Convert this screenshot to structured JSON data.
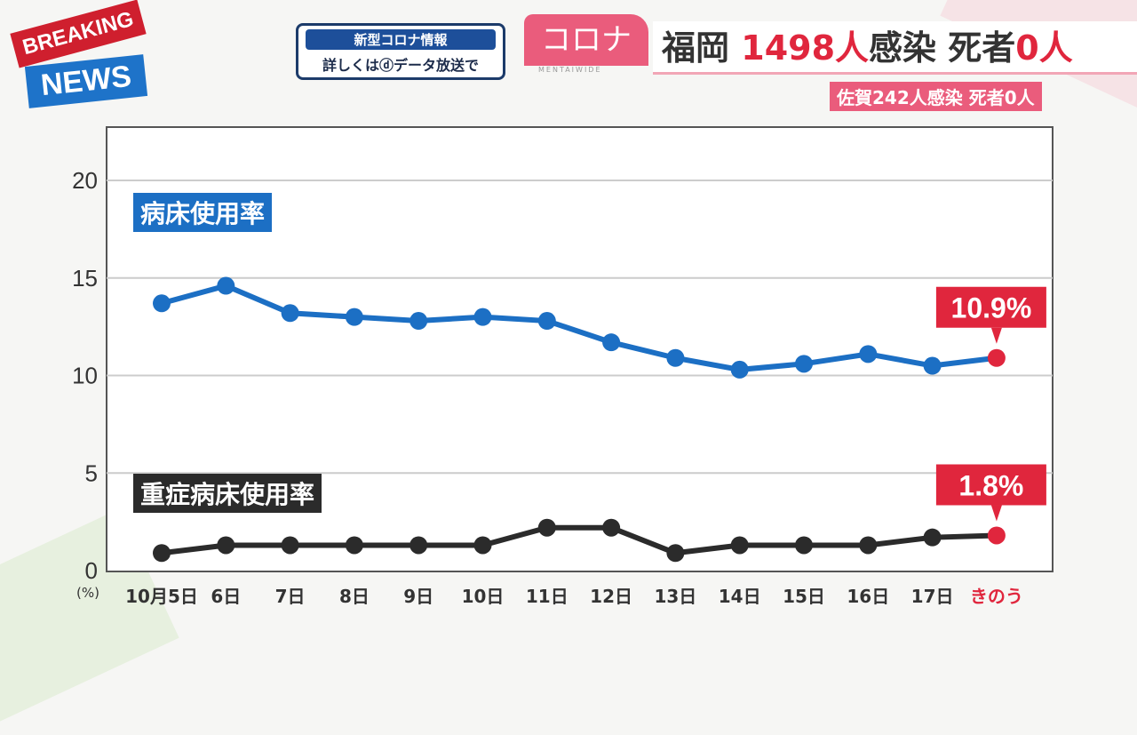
{
  "badge": {
    "breaking": "BREAKING",
    "news": "NEWS"
  },
  "info_box": {
    "line1": "新型コロナ情報",
    "line2": "詳しくはⓓデータ放送で"
  },
  "header": {
    "tag": "コロナ",
    "sub": "MENTAIWIDE",
    "place": "福岡",
    "count": "1498人",
    "infect": "感染",
    "death_label": "死者",
    "death": "0人",
    "secondary": "佐賀242人感染 死者0人"
  },
  "chart_data": {
    "type": "line",
    "categories": [
      "10月5日",
      "6日",
      "7日",
      "8日",
      "9日",
      "10日",
      "11日",
      "12日",
      "13日",
      "14日",
      "15日",
      "16日",
      "17日",
      "きのう"
    ],
    "yticks": [
      "0",
      "5",
      "10",
      "15",
      "20"
    ],
    "ylabel": "(%)",
    "ylim": [
      0,
      22.5
    ],
    "grid": true,
    "series": [
      {
        "name": "病床使用率",
        "color": "#1c6fc4",
        "values": [
          13.7,
          14.6,
          13.2,
          13.0,
          12.8,
          13.0,
          12.8,
          11.7,
          10.9,
          10.3,
          10.6,
          11.1,
          10.5,
          10.9
        ],
        "callout": "10.9%"
      },
      {
        "name": "重症病床使用率",
        "color": "#2b2b2b",
        "values": [
          0.9,
          1.3,
          1.3,
          1.3,
          1.3,
          1.3,
          2.2,
          2.2,
          0.9,
          1.3,
          1.3,
          1.3,
          1.7,
          1.8
        ],
        "callout": "1.8%"
      }
    ],
    "highlight_color": "#e0263d"
  }
}
